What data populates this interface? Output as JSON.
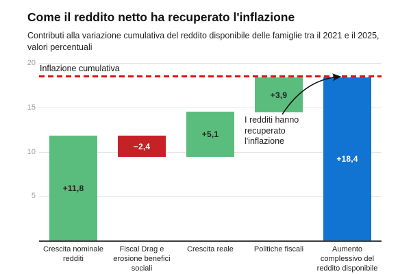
{
  "header": {
    "title": "Come il reddito netto ha recuperato l'inflazione",
    "subtitle_line1": "Contributi alla variazione cumulativa del reddito disponibile delle famiglie tra il 2021 e il 2025,",
    "subtitle_line2": "valori percentuali"
  },
  "chart_data": {
    "type": "bar",
    "subtype": "waterfall",
    "title": "Come il reddito netto ha recuperato l'inflazione",
    "subtitle": "Contributi alla variazione cumulativa del reddito disponibile delle famiglie tra il 2021 e il 2025, valori percentuali",
    "ylim": [
      0,
      20
    ],
    "yticks": [
      5,
      10,
      15,
      20
    ],
    "grid": true,
    "legend": false,
    "bars": [
      {
        "category": "Crescita nominale redditi",
        "category_lines": [
          "Crescita nominale",
          "redditi"
        ],
        "start": 0,
        "end": 11.8,
        "value": 11.8,
        "label": "+11,8",
        "color": "#5bbd7d",
        "label_color": "#212121"
      },
      {
        "category": "Fiscal Drag e erosione benefici sociali",
        "category_lines": [
          "Fiscal Drag e",
          "erosione benefici",
          "sociali"
        ],
        "start": 11.8,
        "end": 9.4,
        "value": -2.4,
        "label": "−2,4",
        "color": "#c52127",
        "label_color": "#ffffff"
      },
      {
        "category": "Crescita reale",
        "category_lines": [
          "Crescita reale"
        ],
        "start": 9.4,
        "end": 14.5,
        "value": 5.1,
        "label": "+5,1",
        "color": "#5bbd7d",
        "label_color": "#212121"
      },
      {
        "category": "Politiche fiscali",
        "category_lines": [
          "Politiche fiscali"
        ],
        "start": 14.5,
        "end": 18.4,
        "value": 3.9,
        "label": "+3,9",
        "color": "#5bbd7d",
        "label_color": "#212121"
      },
      {
        "category": "Aumento complessivo del reddito disponibile",
        "category_lines": [
          "Aumento",
          "complessivo del",
          "reddito disponibile"
        ],
        "start": 0,
        "end": 18.4,
        "value": 18.4,
        "label": "+18,4",
        "color": "#1174d2",
        "label_color": "#ffffff"
      }
    ],
    "reference_line": {
      "label": "Inflazione cumulativa",
      "value": 18.5,
      "color": "#e01111",
      "style": "dashed"
    },
    "annotation": {
      "text_lines": [
        "I redditi hanno",
        "recuperato",
        "l'inflazione"
      ],
      "points_to": "Aumento complessivo del reddito disponibile"
    },
    "colors": {
      "positive": "#5bbd7d",
      "negative": "#c52127",
      "total": "#1174d2",
      "reference": "#e01111"
    }
  }
}
